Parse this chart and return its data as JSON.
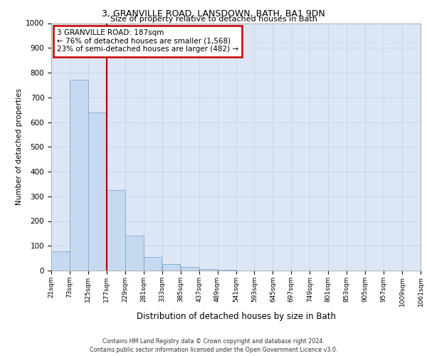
{
  "title": "3, GRANVILLE ROAD, LANSDOWN, BATH, BA1 9DN",
  "subtitle": "Size of property relative to detached houses in Bath",
  "xlabel": "Distribution of detached houses by size in Bath",
  "ylabel": "Number of detached properties",
  "footer_line1": "Contains HM Land Registry data © Crown copyright and database right 2024.",
  "footer_line2": "Contains public sector information licensed under the Open Government Licence v3.0.",
  "property_label": "3 GRANVILLE ROAD: 187sqm",
  "annotation_line1": "← 76% of detached houses are smaller (1,568)",
  "annotation_line2": "23% of semi-detached houses are larger (482) →",
  "vline_x": 177,
  "bin_edges": [
    21,
    73,
    125,
    177,
    229,
    281,
    333,
    385,
    437,
    489,
    541,
    593,
    645,
    697,
    749,
    801,
    853,
    905,
    957,
    1009,
    1061
  ],
  "bar_heights": [
    78,
    770,
    640,
    325,
    140,
    55,
    25,
    15,
    5,
    3,
    0,
    0,
    1,
    0,
    0,
    0,
    0,
    0,
    0,
    0
  ],
  "bar_color": "#c6d9f0",
  "bar_edge_color": "#7aabcf",
  "grid_color": "#c8d4e8",
  "background_color": "#dce6f5",
  "vline_color": "#aa0000",
  "annotation_box_color": "#cc0000",
  "ylim": [
    0,
    1000
  ],
  "yticks": [
    0,
    100,
    200,
    300,
    400,
    500,
    600,
    700,
    800,
    900,
    1000
  ]
}
